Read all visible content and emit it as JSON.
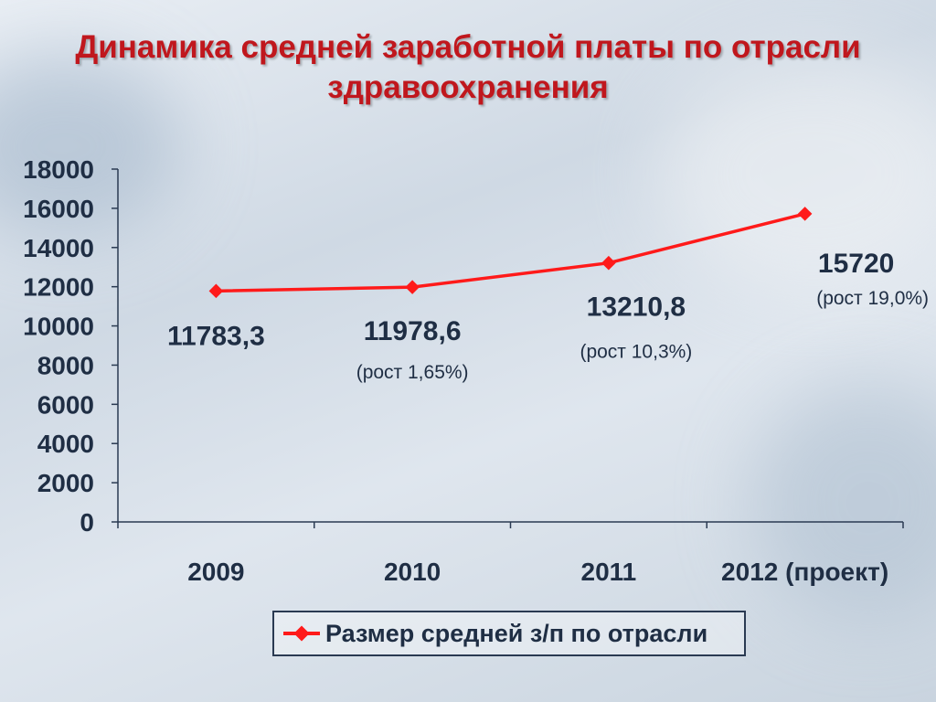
{
  "title_lines": [
    "Динамика средней заработной платы по отрасли",
    "здравоохранения"
  ],
  "colors": {
    "title": "#c0171d",
    "series": "#ff1a1a",
    "text": "#1f2e44",
    "axis": "#2a3a52"
  },
  "chart_data": {
    "type": "line",
    "categories": [
      "2009",
      "2010",
      "2011",
      "2012 (проект)"
    ],
    "series": [
      {
        "name": "Размер средней з/п по отрасли",
        "values": [
          11783.3,
          11978.6,
          13210.8,
          15720
        ]
      }
    ],
    "ylim": [
      0,
      18000
    ],
    "yticks": [
      "0",
      "2000",
      "4000",
      "6000",
      "8000",
      "10000",
      "12000",
      "14000",
      "16000",
      "18000"
    ],
    "data_labels": [
      "11783,3",
      "11978,6",
      "13210,8",
      "15720"
    ],
    "growth_labels": [
      "",
      "(рост 1,65%)",
      "(рост 10,3%)",
      "(рост 19,0%)"
    ],
    "grid": false,
    "legend_position": "bottom"
  }
}
